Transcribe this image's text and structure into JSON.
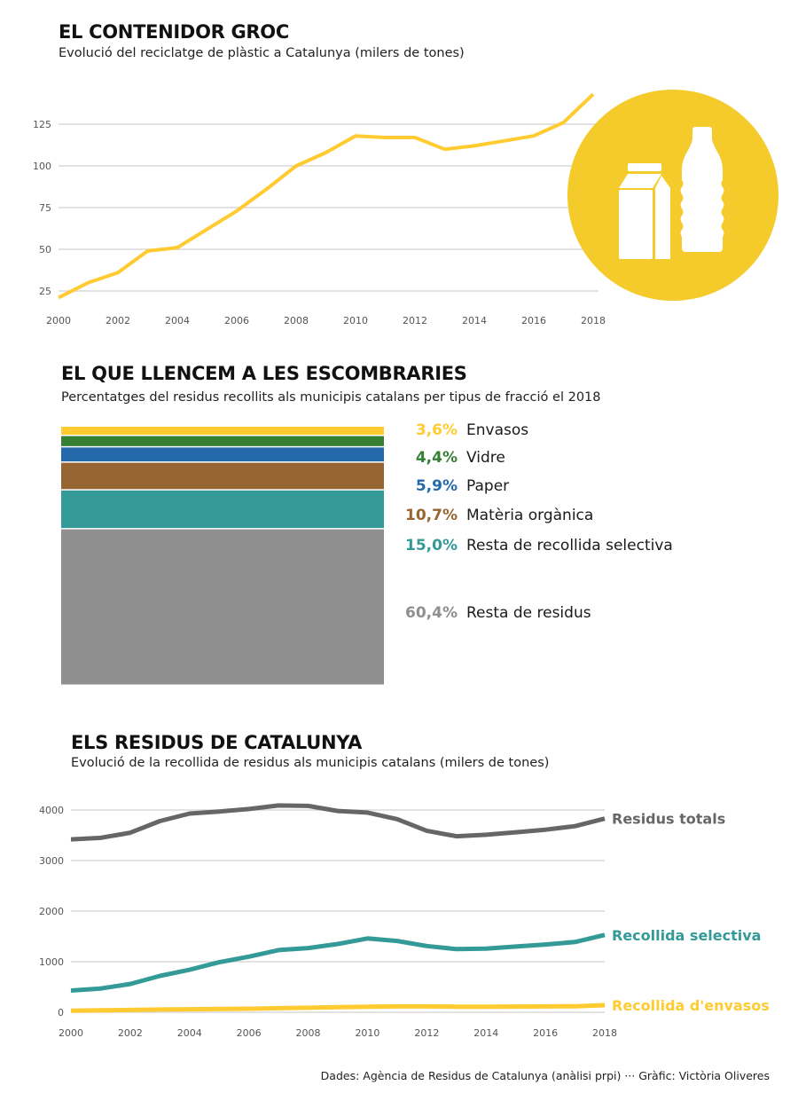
{
  "colors": {
    "yellow": "#FFCB30",
    "icon_circle": "#F4CB2A",
    "green": "#357F33",
    "blue": "#2469A9",
    "brown": "#976532",
    "teal": "#339A97",
    "gray": "#8F8F8F",
    "dark_gray": "#666666",
    "grid": "#d9d9d9"
  },
  "section1": {
    "title": "EL CONTENIDOR GROC",
    "subtitle": "Evolució del reciclatge de plàstic a Catalunya (milers de tones)",
    "icon": "carton-and-bottle-icon"
  },
  "section2": {
    "title": "EL QUE LLENCEM A LES ESCOMBRARIES",
    "subtitle": "Percentatges del residus recollits als municipis catalans per tipus de fracció el 2018"
  },
  "section3": {
    "title": "ELS RESIDUS DE CATALUNYA",
    "subtitle": "Evolució de la recollida de residus als municipis catalans (milers de tones)"
  },
  "footer": "Dades: Agència de Residus de Catalunya (anàlisi prpi) ··· Gràfic: Victòria Oliveres",
  "chart_data": [
    {
      "type": "line",
      "title": "EL CONTENIDOR GROC",
      "subtitle": "Evolució del reciclatge de plàstic a Catalunya (milers de tones)",
      "xlabel": "",
      "ylabel": "milers de tones",
      "x": [
        2000,
        2001,
        2002,
        2003,
        2004,
        2005,
        2006,
        2007,
        2008,
        2009,
        2010,
        2011,
        2012,
        2013,
        2014,
        2015,
        2016,
        2017,
        2018
      ],
      "series": [
        {
          "name": "Reciclatge de plàstic",
          "color": "#FFCB30",
          "values": [
            21,
            30,
            36,
            49,
            51,
            62,
            73,
            86,
            100,
            108,
            118,
            117,
            117,
            110,
            112,
            115,
            118,
            126,
            143
          ]
        }
      ],
      "xticks": [
        "2000",
        "2002",
        "2004",
        "2006",
        "2008",
        "2010",
        "2012",
        "2014",
        "2016",
        "2018"
      ],
      "yticks": [
        "25",
        "50",
        "75",
        "100",
        "125"
      ],
      "ylim": [
        20,
        145
      ],
      "xlim": [
        2000,
        2018
      ],
      "grid": true,
      "legend": "none"
    },
    {
      "type": "bar",
      "stacked": true,
      "title": "EL QUE LLENCEM A LES ESCOMBRARIES",
      "subtitle": "Percentatges del residus recollits als municipis catalans per tipus de fracció el 2018",
      "categories": [
        "Envasos",
        "Vidre",
        "Paper",
        "Matèria orgànica",
        "Resta de recollida selectiva",
        "Resta de residus"
      ],
      "values": [
        3.6,
        4.4,
        5.9,
        10.7,
        15.0,
        60.4
      ],
      "labels": [
        "3,6%",
        "4,4%",
        "5,9%",
        "10,7%",
        "15,0%",
        "60,4%"
      ],
      "colors": [
        "#FFCB30",
        "#357F33",
        "#2469A9",
        "#976532",
        "#339A97",
        "#8F8F8F"
      ],
      "legend": "right"
    },
    {
      "type": "line",
      "title": "ELS RESIDUS DE CATALUNYA",
      "subtitle": "Evolució de la recollida de residus als municipis catalans (milers de tones)",
      "xlabel": "",
      "ylabel": "milers de tones",
      "x": [
        2000,
        2001,
        2002,
        2003,
        2004,
        2005,
        2006,
        2007,
        2008,
        2009,
        2010,
        2011,
        2012,
        2013,
        2014,
        2015,
        2016,
        2017,
        2018
      ],
      "series": [
        {
          "name": "Residus totals",
          "color": "#666666",
          "values": [
            3420,
            3450,
            3550,
            3780,
            3930,
            3970,
            4020,
            4090,
            4080,
            3980,
            3950,
            3820,
            3590,
            3480,
            3510,
            3560,
            3610,
            3680,
            3830
          ]
        },
        {
          "name": "Recollida selectiva",
          "color": "#339A97",
          "values": [
            430,
            470,
            560,
            720,
            840,
            990,
            1100,
            1230,
            1270,
            1350,
            1460,
            1410,
            1310,
            1250,
            1260,
            1300,
            1340,
            1390,
            1530
          ]
        },
        {
          "name": "Recollida d'envasos",
          "color": "#FFCB30",
          "values": [
            30,
            40,
            45,
            55,
            60,
            65,
            70,
            80,
            90,
            100,
            110,
            115,
            115,
            110,
            110,
            112,
            115,
            120,
            140
          ]
        }
      ],
      "xticks": [
        "2000",
        "2002",
        "2004",
        "2006",
        "2008",
        "2010",
        "2012",
        "2014",
        "2016",
        "2018"
      ],
      "yticks": [
        "0",
        "1000",
        "2000",
        "3000",
        "4000"
      ],
      "ylim": [
        0,
        4200
      ],
      "xlim": [
        2000,
        2018
      ],
      "grid": true,
      "legend": "right-end-labels"
    }
  ]
}
